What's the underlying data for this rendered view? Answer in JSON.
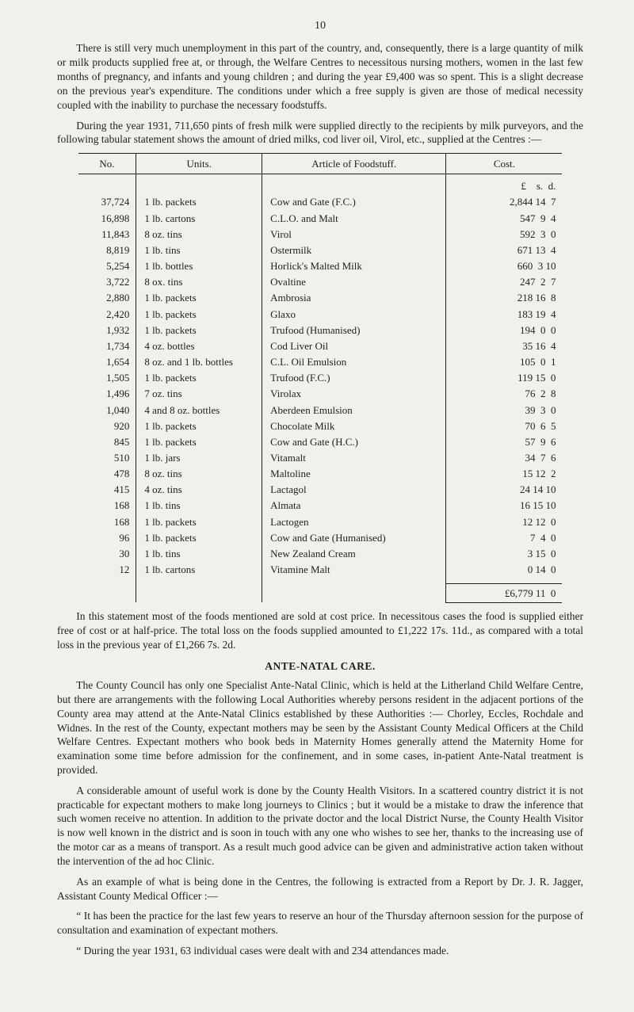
{
  "page_number": "10",
  "paragraphs": {
    "p1": "There is still very much unemployment in this part of the country, and, consequently, there is a large quantity of milk or milk products supplied free at, or through, the Welfare Centres to necessitous nursing mothers, women in the last few months of pregnancy, and infants and young children ; and during the year £9,400 was so spent. This is a slight decrease on the previous year's expenditure. The conditions under which a free supply is given are those of medical necessity coupled with the inability to purchase the necessary foodstuffs.",
    "p2": "During the year 1931, 711,650 pints of fresh milk were supplied directly to the recipients by milk purveyors, and the following tabular statement shows the amount of dried milks, cod liver oil, Virol, etc., supplied at the Centres :—",
    "p3": "In this statement most of the foods mentioned are sold at cost price. In necessitous cases the food is supplied either free of cost or at half-price. The total loss on the foods supplied amounted to £1,222 17s. 11d., as compared with a total loss in the previous year of £1,266 7s. 2d.",
    "p4": "The County Council has only one Specialist Ante-Natal Clinic, which is held at the Litherland Child Welfare Centre, but there are arrangements with the following Local Authorities whereby persons resident in the adjacent portions of the County area may attend at the Ante-Natal Clinics established by these Authorities :— Chorley, Eccles, Rochdale and Widnes. In the rest of the County, expectant mothers may be seen by the Assistant County Medical Officers at the Child Welfare Centres. Expectant mothers who book beds in Maternity Homes generally attend the Maternity Home for examination some time before admission for the confinement, and in some cases, in-patient Ante-Natal treatment is provided.",
    "p5": "A considerable amount of useful work is done by the County Health Visitors. In a scattered country district it is not practicable for expectant mothers to make long journeys to Clinics ; but it would be a mistake to draw the inference that such women receive no attention. In addition to the private doctor and the local District Nurse, the County Health Visitor is now well known in the district and is soon in touch with any one who wishes to see her, thanks to the increasing use of the motor car as a means of transport. As a result much good advice can be given and administrative action taken without the intervention of the ad hoc Clinic.",
    "p6": "As an example of what is being done in the Centres, the following is extracted from a Report by Dr. J. R. Jagger, Assistant County Medical Officer :—",
    "p7": "“ It has been the practice for the last few years to reserve an hour of the Thursday afternoon session for the purpose of consultation and examination of expectant mothers.",
    "p8": "“ During the year 1931, 63 individual cases were dealt with and 234 attendances made."
  },
  "section_heading": "ANTE-NATAL CARE.",
  "table": {
    "headers": {
      "no": "No.",
      "units": "Units.",
      "article": "Article of Foodstuff.",
      "cost": "Cost."
    },
    "currency_header": "£    s.  d.",
    "rows": [
      {
        "no": "37,724",
        "units": "1 lb. packets",
        "article": "Cow and Gate (F.C.)",
        "cost": "2,844 14  7"
      },
      {
        "no": "16,898",
        "units": "1 lb. cartons",
        "article": "C.L.O. and Malt",
        "cost": "547  9  4"
      },
      {
        "no": "11,843",
        "units": "8 oz. tins",
        "article": "Virol",
        "cost": "592  3  0"
      },
      {
        "no": "8,819",
        "units": "1 lb. tins",
        "article": "Ostermilk",
        "cost": "671 13  4"
      },
      {
        "no": "5,254",
        "units": "1 lb. bottles",
        "article": "Horlick's Malted Milk",
        "cost": "660  3 10"
      },
      {
        "no": "3,722",
        "units": "8 ox. tins",
        "article": "Ovaltine",
        "cost": "247  2  7"
      },
      {
        "no": "2,880",
        "units": "1 lb. packets",
        "article": "Ambrosia",
        "cost": "218 16  8"
      },
      {
        "no": "2,420",
        "units": "1 lb. packets",
        "article": "Glaxo",
        "cost": "183 19  4"
      },
      {
        "no": "1,932",
        "units": "1 lb. packets",
        "article": "Trufood (Humanised)",
        "cost": "194  0  0"
      },
      {
        "no": "1,734",
        "units": "4 oz. bottles",
        "article": "Cod Liver Oil",
        "cost": "35 16  4"
      },
      {
        "no": "1,654",
        "units": "8 oz. and 1 lb. bottles",
        "article": "C.L. Oil Emulsion",
        "cost": "105  0  1"
      },
      {
        "no": "1,505",
        "units": "1 lb. packets",
        "article": "Trufood (F.C.)",
        "cost": "119 15  0"
      },
      {
        "no": "1,496",
        "units": "7 oz. tins",
        "article": "Virolax",
        "cost": "76  2  8"
      },
      {
        "no": "1,040",
        "units": "4 and 8 oz. bottles",
        "article": "Aberdeen Emulsion",
        "cost": "39  3  0"
      },
      {
        "no": "920",
        "units": "1 lb. packets",
        "article": "Chocolate Milk",
        "cost": "70  6  5"
      },
      {
        "no": "845",
        "units": "1 lb. packets",
        "article": "Cow and Gate (H.C.)",
        "cost": "57  9  6"
      },
      {
        "no": "510",
        "units": "1 lb. jars",
        "article": "Vitamalt",
        "cost": "34  7  6"
      },
      {
        "no": "478",
        "units": "8 oz. tins",
        "article": "Maltoline",
        "cost": "15 12  2"
      },
      {
        "no": "415",
        "units": "4 oz. tins",
        "article": "Lactagol",
        "cost": "24 14 10"
      },
      {
        "no": "168",
        "units": "1 lb. tins",
        "article": "Almata",
        "cost": "16 15 10"
      },
      {
        "no": "168",
        "units": "1 lb. packets",
        "article": "Lactogen",
        "cost": "12 12  0"
      },
      {
        "no": "96",
        "units": "1 lb. packets",
        "article": "Cow and Gate (Humanised)",
        "cost": "7  4  0"
      },
      {
        "no": "30",
        "units": "1 lb. tins",
        "article": "New Zealand Cream",
        "cost": "3 15  0"
      },
      {
        "no": "12",
        "units": "1 lb. cartons",
        "article": "Vitamine Malt",
        "cost": "0 14  0"
      }
    ],
    "total": "£6,779 11  0"
  }
}
